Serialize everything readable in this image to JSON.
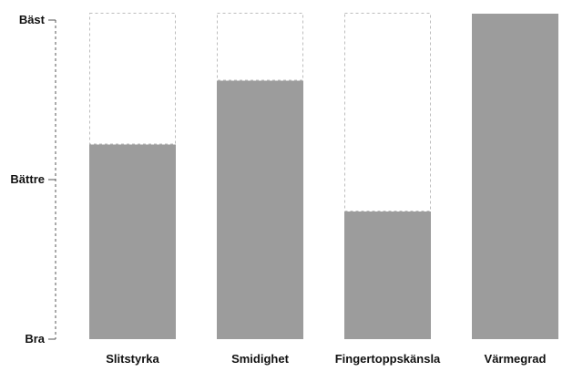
{
  "chart_data": {
    "type": "bar",
    "title": "",
    "xlabel": "",
    "ylabel": "",
    "y_tick_labels": [
      "Bra",
      "Bättre",
      "Bäst"
    ],
    "categories": [
      "Slitstyrka",
      "Smidighet",
      "Fingertoppskänsla",
      "Värmegrad"
    ],
    "values": [
      0.61,
      0.81,
      0.4,
      1.0
    ],
    "max_value": 1.0,
    "ylim": [
      0,
      1
    ],
    "grid": false,
    "legend": "none",
    "colors": {
      "bar_fill": "#9c9c9c",
      "max_outline": "#bdbdbd",
      "axis": "#555555",
      "text": "#111111"
    }
  }
}
